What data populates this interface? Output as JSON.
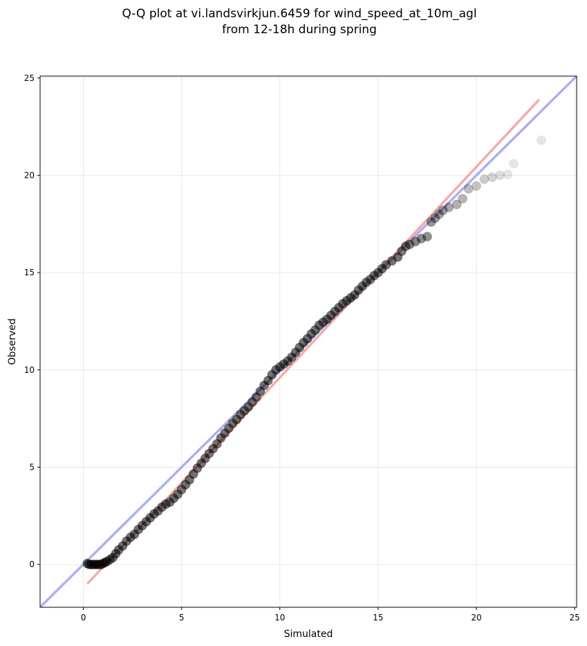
{
  "chart_data": {
    "type": "scatter",
    "title_lines": [
      "Q-Q plot at vi.landsvirkjun.6459 for wind_speed_at_10m_agl",
      "from 12-18h during spring"
    ],
    "xlabel": "Simulated",
    "ylabel": "Observed",
    "xlim": [
      -2.2,
      25.1
    ],
    "ylim": [
      -2.2,
      25.1
    ],
    "xticks": [
      0,
      5,
      10,
      15,
      20,
      25
    ],
    "yticks": [
      0,
      5,
      10,
      15,
      20,
      25
    ],
    "grid": true,
    "colors": {
      "points": "#000000",
      "identity_line": "#aaaaee",
      "fit_line": "#f4a6a6",
      "frame": "#000000"
    },
    "identity_line": {
      "x": [
        -2.2,
        25.1
      ],
      "y": [
        -2.2,
        25.1
      ]
    },
    "fit_line": {
      "x": [
        0.2,
        23.2
      ],
      "y": [
        -1.0,
        23.9
      ]
    },
    "points": [
      {
        "x": 0.2,
        "y": 0.05
      },
      {
        "x": 0.3,
        "y": 0.0
      },
      {
        "x": 0.4,
        "y": 0.0
      },
      {
        "x": 0.5,
        "y": 0.0
      },
      {
        "x": 0.6,
        "y": 0.0
      },
      {
        "x": 0.7,
        "y": 0.0
      },
      {
        "x": 0.8,
        "y": 0.0
      },
      {
        "x": 0.9,
        "y": 0.0
      },
      {
        "x": 1.0,
        "y": 0.05
      },
      {
        "x": 1.1,
        "y": 0.1
      },
      {
        "x": 1.2,
        "y": 0.15
      },
      {
        "x": 1.35,
        "y": 0.25
      },
      {
        "x": 1.5,
        "y": 0.35
      },
      {
        "x": 1.65,
        "y": 0.55
      },
      {
        "x": 1.8,
        "y": 0.75
      },
      {
        "x": 2.0,
        "y": 0.95
      },
      {
        "x": 2.2,
        "y": 1.2
      },
      {
        "x": 2.4,
        "y": 1.4
      },
      {
        "x": 2.6,
        "y": 1.55
      },
      {
        "x": 2.8,
        "y": 1.8
      },
      {
        "x": 3.0,
        "y": 2.0
      },
      {
        "x": 3.2,
        "y": 2.2
      },
      {
        "x": 3.4,
        "y": 2.4
      },
      {
        "x": 3.6,
        "y": 2.6
      },
      {
        "x": 3.8,
        "y": 2.75
      },
      {
        "x": 4.0,
        "y": 2.95
      },
      {
        "x": 4.2,
        "y": 3.1
      },
      {
        "x": 4.4,
        "y": 3.2
      },
      {
        "x": 4.6,
        "y": 3.4
      },
      {
        "x": 4.8,
        "y": 3.6
      },
      {
        "x": 5.0,
        "y": 3.85
      },
      {
        "x": 5.2,
        "y": 4.1
      },
      {
        "x": 5.4,
        "y": 4.35
      },
      {
        "x": 5.6,
        "y": 4.65
      },
      {
        "x": 5.8,
        "y": 4.95
      },
      {
        "x": 6.0,
        "y": 5.2
      },
      {
        "x": 6.2,
        "y": 5.45
      },
      {
        "x": 6.4,
        "y": 5.7
      },
      {
        "x": 6.6,
        "y": 5.95
      },
      {
        "x": 6.8,
        "y": 6.2
      },
      {
        "x": 7.0,
        "y": 6.5
      },
      {
        "x": 7.2,
        "y": 6.75
      },
      {
        "x": 7.4,
        "y": 7.0
      },
      {
        "x": 7.6,
        "y": 7.25
      },
      {
        "x": 7.8,
        "y": 7.45
      },
      {
        "x": 8.0,
        "y": 7.7
      },
      {
        "x": 8.2,
        "y": 7.9
      },
      {
        "x": 8.4,
        "y": 8.1
      },
      {
        "x": 8.6,
        "y": 8.35
      },
      {
        "x": 8.8,
        "y": 8.6
      },
      {
        "x": 9.0,
        "y": 8.9
      },
      {
        "x": 9.2,
        "y": 9.2
      },
      {
        "x": 9.4,
        "y": 9.45
      },
      {
        "x": 9.6,
        "y": 9.75
      },
      {
        "x": 9.8,
        "y": 10.0
      },
      {
        "x": 10.0,
        "y": 10.15
      },
      {
        "x": 10.2,
        "y": 10.3
      },
      {
        "x": 10.4,
        "y": 10.45
      },
      {
        "x": 10.6,
        "y": 10.65
      },
      {
        "x": 10.8,
        "y": 10.9
      },
      {
        "x": 11.0,
        "y": 11.15
      },
      {
        "x": 11.2,
        "y": 11.4
      },
      {
        "x": 11.4,
        "y": 11.6
      },
      {
        "x": 11.6,
        "y": 11.85
      },
      {
        "x": 11.8,
        "y": 12.05
      },
      {
        "x": 12.0,
        "y": 12.3
      },
      {
        "x": 12.2,
        "y": 12.45
      },
      {
        "x": 12.4,
        "y": 12.6
      },
      {
        "x": 12.6,
        "y": 12.8
      },
      {
        "x": 12.8,
        "y": 13.0
      },
      {
        "x": 13.0,
        "y": 13.2
      },
      {
        "x": 13.2,
        "y": 13.4
      },
      {
        "x": 13.4,
        "y": 13.55
      },
      {
        "x": 13.6,
        "y": 13.7
      },
      {
        "x": 13.8,
        "y": 13.85
      },
      {
        "x": 14.0,
        "y": 14.1
      },
      {
        "x": 14.2,
        "y": 14.3
      },
      {
        "x": 14.4,
        "y": 14.5
      },
      {
        "x": 14.6,
        "y": 14.65
      },
      {
        "x": 14.8,
        "y": 14.85
      },
      {
        "x": 15.0,
        "y": 15.0
      },
      {
        "x": 15.2,
        "y": 15.2
      },
      {
        "x": 15.4,
        "y": 15.4
      },
      {
        "x": 15.7,
        "y": 15.6
      },
      {
        "x": 16.0,
        "y": 15.8
      },
      {
        "x": 16.2,
        "y": 16.1
      },
      {
        "x": 16.4,
        "y": 16.35
      },
      {
        "x": 16.6,
        "y": 16.45
      },
      {
        "x": 16.9,
        "y": 16.6
      },
      {
        "x": 17.2,
        "y": 16.75
      },
      {
        "x": 17.5,
        "y": 16.85
      },
      {
        "x": 17.7,
        "y": 17.6
      },
      {
        "x": 17.9,
        "y": 17.8
      },
      {
        "x": 18.1,
        "y": 18.0
      },
      {
        "x": 18.3,
        "y": 18.2
      },
      {
        "x": 18.6,
        "y": 18.35
      },
      {
        "x": 19.0,
        "y": 18.5
      },
      {
        "x": 19.3,
        "y": 18.8
      },
      {
        "x": 19.6,
        "y": 19.3
      },
      {
        "x": 20.0,
        "y": 19.45
      },
      {
        "x": 20.4,
        "y": 19.8
      },
      {
        "x": 20.8,
        "y": 19.9
      },
      {
        "x": 21.2,
        "y": 20.0
      },
      {
        "x": 21.6,
        "y": 20.05
      },
      {
        "x": 21.9,
        "y": 20.6
      },
      {
        "x": 23.3,
        "y": 21.8
      }
    ]
  }
}
